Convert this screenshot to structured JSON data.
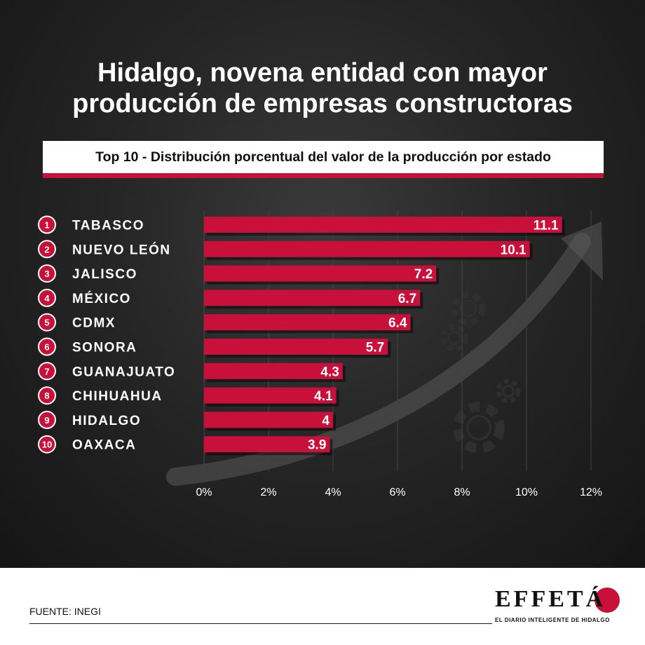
{
  "title_line1": "Hidalgo, novena entidad con mayor",
  "title_line2": "producción de empresas constructoras",
  "subtitle": "Top 10 - Distribución porcentual del valor de la producción por estado",
  "source": "FUENTE: INEGI",
  "logo": {
    "name": "EFFETÁ",
    "tagline": "EL DIARIO INTELIGENTE DE HIDALGO"
  },
  "colors": {
    "bar": "#c8103a",
    "background": "#1e1e1e",
    "accent": "#c8103a"
  },
  "chart_data": {
    "type": "bar",
    "orientation": "horizontal",
    "categories": [
      "TABASCO",
      "NUEVO LEÓN",
      "JALISCO",
      "MÉXICO",
      "CDMX",
      "SONORA",
      "GUANAJUATO",
      "CHIHUAHUA",
      "HIDALGO",
      "OAXACA"
    ],
    "ranks": [
      "1",
      "2",
      "3",
      "4",
      "5",
      "6",
      "7",
      "8",
      "9",
      "10"
    ],
    "values": [
      11.1,
      10.1,
      7.2,
      6.7,
      6.4,
      5.7,
      4.3,
      4.1,
      4,
      3.9
    ],
    "value_labels": [
      "11.1",
      "10.1",
      "7.2",
      "6.7",
      "6.4",
      "5.7",
      "4.3",
      "4.1",
      "4",
      "3.9"
    ],
    "xticks": [
      "0%",
      "2%",
      "4%",
      "6%",
      "8%",
      "10%",
      "12%"
    ],
    "xlim": [
      0,
      12
    ],
    "grid": true
  }
}
